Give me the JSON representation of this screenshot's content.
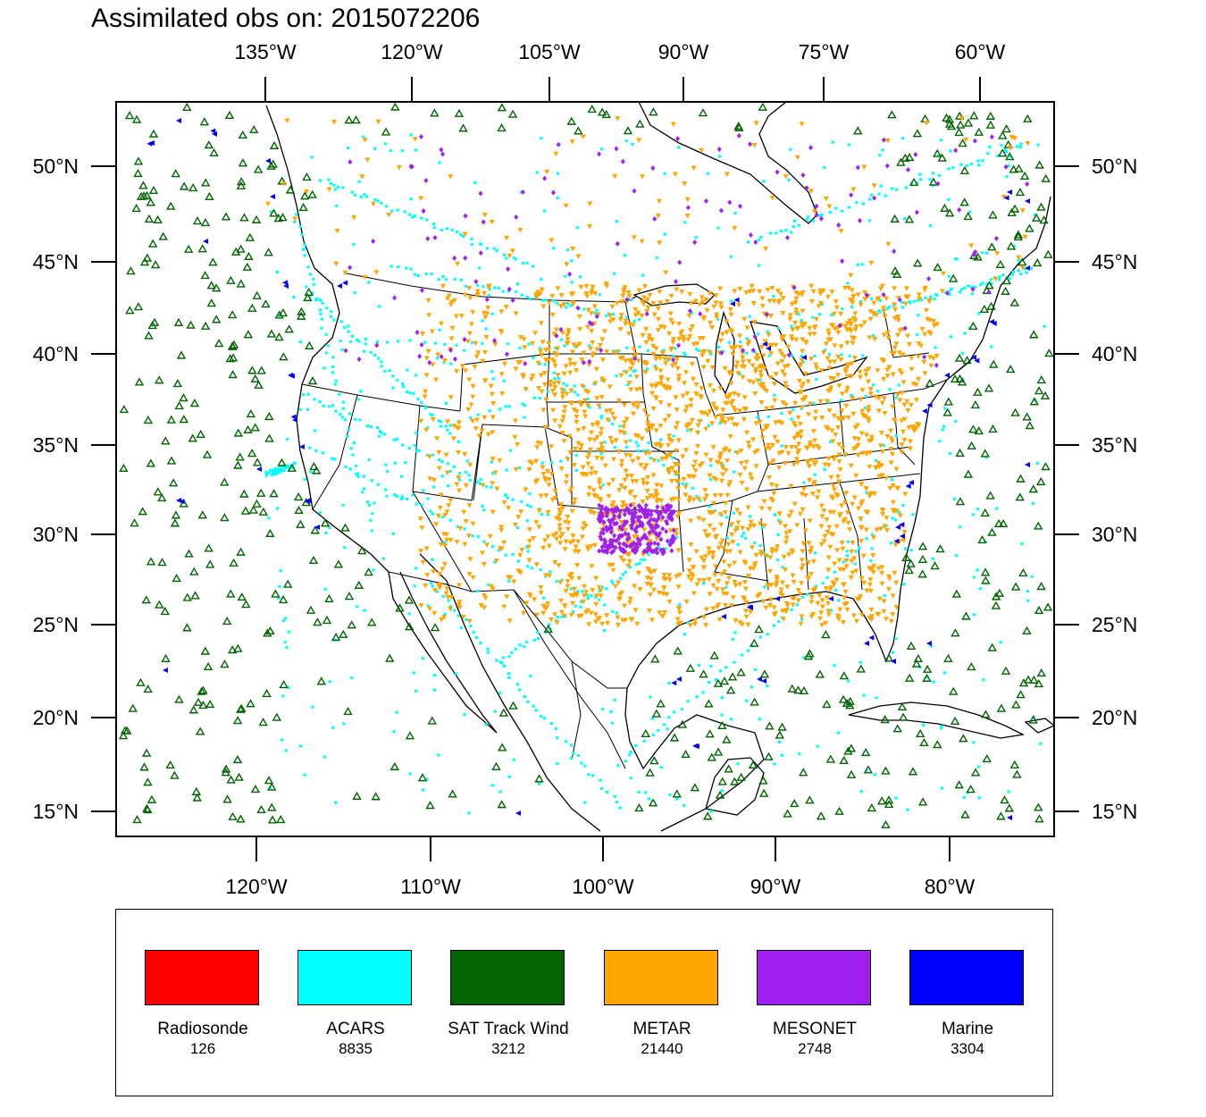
{
  "title": "Assimilated obs on: 2015072206",
  "axes": {
    "top_lon_ticks": [
      "135°W",
      "120°W",
      "105°W",
      "90°W",
      "75°W",
      "60°W"
    ],
    "bottom_lon_ticks": [
      "120°W",
      "110°W",
      "100°W",
      "90°W",
      "80°W"
    ],
    "lat_ticks": [
      "50°N",
      "45°N",
      "40°N",
      "35°N",
      "30°N",
      "25°N",
      "20°N",
      "15°N"
    ]
  },
  "legend": [
    {
      "name": "Radiosonde",
      "count": "126",
      "color": "#ff0000"
    },
    {
      "name": "ACARS",
      "count": "8835",
      "color": "#00ffff"
    },
    {
      "name": "SAT Track Wind",
      "count": "3212",
      "color": "#006400"
    },
    {
      "name": "METAR",
      "count": "21440",
      "color": "#ffa500"
    },
    {
      "name": "MESONET",
      "count": "2748",
      "color": "#a020f0"
    },
    {
      "name": "Marine",
      "count": "3304",
      "color": "#0000ff"
    }
  ],
  "map": {
    "region": "North America (CONUS, Gulf of Mexico, Caribbean, adjacent Pacific/Atlantic)",
    "lon_range": [
      "128°W",
      "73°W"
    ],
    "lat_range": [
      "14°N",
      "53°N"
    ]
  }
}
